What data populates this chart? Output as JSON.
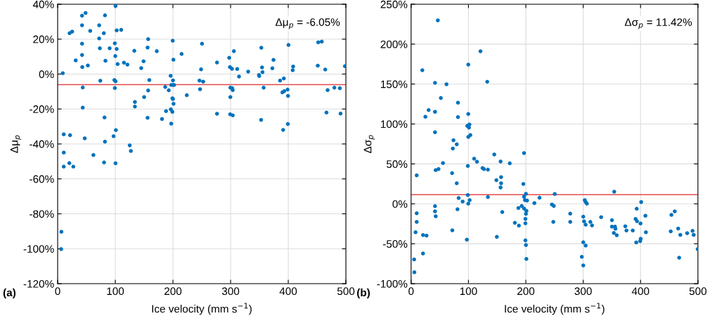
{
  "chart_data": [
    {
      "type": "scatter",
      "xlabel": "Ice velocity (mm s$^{−1}$)",
      "ylabel": "Δμ$_{p}$",
      "annotations": [
        "Δμ$_{p}$ = -6.05%",
        "(a)"
      ],
      "xlim": [
        0,
        500
      ],
      "xticks": [
        0,
        100,
        200,
        300,
        400,
        500
      ],
      "ylim": [
        -120,
        40
      ],
      "yticks": [
        {
          "value": -120,
          "label": "-120%"
        },
        {
          "value": -100,
          "label": "-100%"
        },
        {
          "value": -80,
          "label": "-80%"
        },
        {
          "value": -60,
          "label": "-60%"
        },
        {
          "value": -40,
          "label": "-40%"
        },
        {
          "value": -20,
          "label": "-20%"
        },
        {
          "value": 0,
          "label": "0%"
        },
        {
          "value": 20,
          "label": "20%"
        },
        {
          "value": 40,
          "label": "40%"
        }
      ],
      "grid": true,
      "marker": "circle",
      "ref_lines": [
        {
          "axis": "y",
          "value": -6.05,
          "color": "#e34a4a"
        }
      ],
      "series": [
        {
          "color": "#0072bd",
          "x": [
            100.4,
            48.4,
            42.3,
            82.1,
            42.3,
            72,
            20.7,
            25.2,
            56.5,
            80.1,
            102.4,
            110.2,
            72,
            42.3,
            99.2,
            73.2,
            90.2,
            102.4,
            42.3,
            100,
            133,
            157,
            156,
            172,
            199.6,
            215,
            200.8,
            31.3,
            82.9,
            42.7,
            52.4,
            104,
            115,
            121,
            145,
            149,
            8.9,
            196,
            74,
            98.4,
            100.4,
            159,
            200,
            197,
            200,
            202,
            43.5,
            99.2,
            186.6,
            192.7,
            157,
            150,
            224,
            134,
            134,
            199,
            200,
            201,
            43.5,
            196.3,
            188,
            199,
            156,
            181,
            197,
            81.3,
            101,
            97,
            10.6,
            21.5,
            47,
            82,
            125,
            127,
            10.6,
            62,
            10.6,
            20.3,
            27.2,
            80.5,
            100.4,
            6.5,
            6.1,
            250.4,
            248.8,
            246,
            252.4,
            247,
            276.4,
            297.6,
            305.7,
            298.8,
            302.4,
            311.4,
            314.6,
            330.5,
            349.2,
            349.6,
            353.3,
            354.5,
            355.3,
            357.3,
            374.4,
            372.4,
            385.8,
            392.3,
            389.8,
            393,
            398.8,
            399.6,
            400.4,
            407.7,
            408.5,
            451.2,
            452,
            458.1,
            464.2,
            468.3,
            480,
            489.4,
            498.3,
            299.6,
            302.8,
            303.7,
            299.6,
            276.4,
            299.2,
            303.7,
            352.9,
            391.1,
            399.3,
            466.3,
            490.7
          ],
          "values": [
            39.0,
            35.0,
            33.4,
            33.6,
            27.9,
            27.9,
            23.4,
            24.3,
            24.7,
            23.4,
            25.0,
            25.3,
            20.4,
            17.4,
            17.6,
            14.8,
            14.8,
            14.4,
            10.9,
            10.3,
            13.3,
            20.0,
            15.2,
            13.1,
            19.1,
            11.5,
            8.2,
            7.8,
            7.6,
            4.0,
            4.9,
            5.7,
            6.5,
            5.4,
            3.4,
            7.3,
            0.5,
            -1.0,
            -3.8,
            -3.4,
            -4.1,
            -3.4,
            -3.6,
            -6.2,
            -6.2,
            -6.2,
            -7.7,
            -8.0,
            -7.4,
            -9.3,
            -9.4,
            -13.2,
            -12.1,
            -16.0,
            -18.6,
            -13.9,
            -14.3,
            -17.0,
            -19.2,
            -20.2,
            -21.2,
            -21.6,
            -25.0,
            -25.7,
            -28.4,
            -24.8,
            -32.1,
            -35.6,
            -34.5,
            -35.0,
            -36.8,
            -38.7,
            -40.8,
            -44.0,
            -44.9,
            -46.3,
            -53.0,
            -51.0,
            -53.0,
            -50.6,
            -51.1,
            -90.3,
            -100.2,
            17.4,
            2.7,
            -3.7,
            -4.3,
            -8.7,
            6.6,
            9.3,
            13.1,
            4.0,
            3.0,
            2.9,
            -1.4,
            1.4,
            -0.5,
            -1.1,
            15.1,
            3.8,
            1.1,
            -7.8,
            8.1,
            3.3,
            -3.7,
            -2.5,
            -10.5,
            -9.8,
            -8.9,
            -12.5,
            16.7,
            2.2,
            4.3,
            4.8,
            18.2,
            18.6,
            2.6,
            -9.2,
            -7.8,
            -8.1,
            4.5,
            -7.8,
            -8.1,
            -9.2,
            -13.2,
            -22.7,
            -23.0,
            -23.6,
            -26.2,
            -32.0,
            -28.6,
            -22.0,
            -22.6
          ]
        }
      ]
    },
    {
      "type": "scatter",
      "xlabel": "Ice velocity (mm s$^{−1}$)",
      "ylabel": "Δσ$_{p}$",
      "annotations": [
        "Δσ$_{p}$ = 11.42%",
        "(b)"
      ],
      "xlim": [
        0,
        500
      ],
      "xticks": [
        0,
        100,
        200,
        300,
        400,
        500
      ],
      "ylim": [
        -100,
        250
      ],
      "yticks": [
        {
          "value": -100,
          "label": "-100%"
        },
        {
          "value": -50,
          "label": "-50%"
        },
        {
          "value": 0,
          "label": "0%"
        },
        {
          "value": 50,
          "label": "50%"
        },
        {
          "value": 100,
          "label": "100%"
        },
        {
          "value": 150,
          "label": "150%"
        },
        {
          "value": 200,
          "label": "200%"
        },
        {
          "value": 250,
          "label": "250%"
        }
      ],
      "grid": true,
      "marker": "circle",
      "ref_lines": [
        {
          "axis": "y",
          "value": 11.42,
          "color": "#e34a4a"
        }
      ],
      "series": [
        {
          "color": "#0072bd",
          "x": [
            46.6,
            120.9,
            99.7,
            19.6,
            41.7,
            61.7,
            132.7,
            51.9,
            81.7,
            30.6,
            24.9,
            41.7,
            81.7,
            99.7,
            98,
            101.7,
            100.9,
            99.7,
            103.3,
            41.7,
            73.9,
            79.6,
            72.7,
            145,
            196.9,
            109.9,
            114.8,
            156,
            172,
            55.6,
            47.8,
            42.9,
            9.8,
            98.9,
            71.5,
            124.6,
            127,
            133.9,
            148.7,
            156.9,
            156.9,
            156,
            195.7,
            79.6,
            82.9,
            89.9,
            98.9,
            99.7,
            102.1,
            133.9,
            196.9,
            200.2,
            198.5,
            202.2,
            214.9,
            223.9,
            9.8,
            9.8,
            7.8,
            41.7,
            41.7,
            42.9,
            80.9,
            71.9,
            20.8,
            26.9,
            20.8,
            5.3,
            5.7,
            97.2,
            149.5,
            158.9,
            187.1,
            192.8,
            196.9,
            201,
            200.2,
            199.3,
            180.9,
            187.9,
            199.3,
            199.3,
            200.2,
            201,
            245.5,
            248.8,
            247.9,
            250.4,
            354.1,
            302.7,
            304.3,
            306.4,
            277.4,
            277.4,
            300.2,
            301.5,
            304.3,
            312.5,
            315.4,
            331.3,
            350.1,
            350.1,
            355.4,
            356.2,
            353.4,
            358.5,
            373.4,
            375.4,
            386.4,
            393.3,
            391.3,
            393.8,
            399.9,
            401.1,
            408.5,
            409.3,
            392.5,
            399.4,
            400.2,
            453.8,
            459.6,
            452.6,
            465.6,
            469.3,
            467.3,
            481.2,
            490.6,
            492.6,
            499.5,
            300.2,
            304.3,
            297.6,
            300.2
          ],
          "values": [
            229.8,
            191.1,
            174.4,
            167.3,
            151.5,
            149.8,
            152.9,
            132.5,
            126.6,
            117.5,
            109.0,
            115.2,
            108.7,
            112.5,
            97.6,
            99.4,
            95.5,
            83.8,
            86.1,
            89.6,
            79.6,
            74.6,
            69.3,
            61.8,
            63.5,
            56.5,
            52.7,
            53.0,
            50.7,
            51.0,
            43.6,
            42.2,
            35.7,
            47.4,
            38.4,
            44.8,
            43.6,
            42.8,
            29.6,
            33.4,
            25.8,
            20.5,
            24.9,
            25.8,
            7.3,
            2.9,
            11.1,
            0.3,
            4.7,
            8.5,
            8.8,
            12.6,
            4.7,
            4.1,
            0.9,
            7.6,
            -11.8,
            -22.6,
            -35.5,
            -2.9,
            -9.4,
            -15.5,
            -6.7,
            -33.2,
            -39.1,
            -39.7,
            -62.2,
            -69.6,
            -85.7,
            -44.9,
            -41.4,
            -10.3,
            -5.3,
            -2.7,
            -5.9,
            -8.8,
            -12.6,
            -18.8,
            -23.8,
            -27.3,
            -24.4,
            -45.8,
            -51.7,
            -69.0,
            -0.9,
            -2.7,
            -22.6,
            12.3,
            15.2,
            4.7,
            2.3,
            0.3,
            -12.3,
            -22.6,
            -16.1,
            -22.0,
            -26.1,
            -22.6,
            -27.0,
            -16.7,
            -20.5,
            -28.5,
            -28.5,
            -31.1,
            -36.4,
            -39.3,
            -28.1,
            -33.4,
            -33.4,
            -6.2,
            -18.8,
            -21.7,
            -24.6,
            2.3,
            -14.9,
            -35.5,
            -48.4,
            -46.7,
            -43.8,
            -13.8,
            -9.4,
            -34.4,
            -30.9,
            -38.8,
            -67.5,
            -36.8,
            -33.8,
            -38.8,
            -56.7,
            -48.2,
            -52.3,
            -66.4,
            -77.2
          ]
        }
      ]
    }
  ]
}
